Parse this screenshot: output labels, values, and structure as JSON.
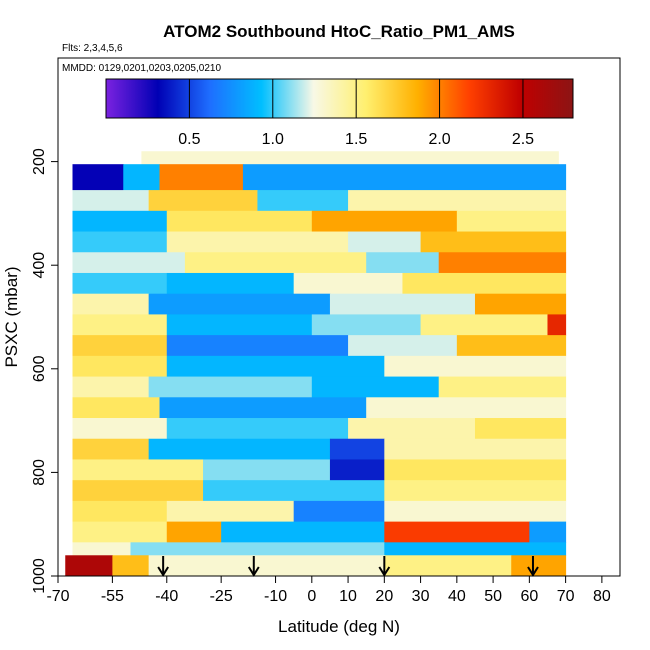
{
  "chart_data": {
    "type": "heatmap",
    "title": "ATOM2 Southbound HtoC_Ratio_PM1_AMS",
    "flights_note": "Flts: 2,3,4,5,6",
    "dates_note": "MMDD: 0129,0201,0203,0205,0210",
    "xlabel": "Latitude (deg N)",
    "ylabel": "PSXC (mbar)",
    "xlim": [
      -70,
      85
    ],
    "ylim": [
      1000,
      0
    ],
    "x_ticks": [
      -70,
      -55,
      -40,
      -25,
      -10,
      0,
      10,
      20,
      30,
      40,
      50,
      60,
      70,
      80
    ],
    "x_tick_labels": [
      "-70",
      "-55",
      "-40",
      "-25",
      "-10",
      "0",
      "10",
      "20",
      "30",
      "40",
      "50",
      "60",
      "70",
      "80"
    ],
    "y_ticks": [
      200,
      400,
      600,
      800,
      1000
    ],
    "y_tick_labels": [
      "200",
      "400",
      "600",
      "800",
      "1000"
    ],
    "colorbar": {
      "range": [
        0,
        2.8
      ],
      "ticks": [
        0.5,
        1.0,
        1.5,
        2.0,
        2.5
      ],
      "tick_labels": [
        "0.5",
        "1.0",
        "1.5",
        "2.0",
        "2.5"
      ],
      "colors": [
        "#7b22e0",
        "#0000b4",
        "#1e6eff",
        "#00bfff",
        "#f8f8e6",
        "#fff070",
        "#ffb000",
        "#ff4000",
        "#c00000",
        "#8c1414"
      ]
    },
    "date_arrow_latitudes": [
      -41,
      -16,
      20,
      61
    ],
    "layers": [
      {
        "p_top": 180,
        "p_bot": 205,
        "segments": [
          [
            -47,
            68,
            1.3
          ]
        ]
      },
      {
        "p_top": 205,
        "p_bot": 255,
        "segments": [
          [
            -66,
            -52,
            0.3
          ],
          [
            -52,
            -42,
            0.9
          ],
          [
            -42,
            -19,
            2.0
          ],
          [
            -19,
            70,
            0.8
          ]
        ]
      },
      {
        "p_top": 255,
        "p_bot": 295,
        "segments": [
          [
            -66,
            -45,
            1.2
          ],
          [
            -45,
            -15,
            1.7
          ],
          [
            -15,
            10,
            1.0
          ],
          [
            10,
            70,
            1.4
          ]
        ]
      },
      {
        "p_top": 295,
        "p_bot": 335,
        "segments": [
          [
            -66,
            -40,
            0.9
          ],
          [
            -40,
            0,
            1.6
          ],
          [
            0,
            40,
            1.9
          ],
          [
            40,
            70,
            1.5
          ]
        ]
      },
      {
        "p_top": 335,
        "p_bot": 375,
        "segments": [
          [
            -66,
            -40,
            1.0
          ],
          [
            -40,
            10,
            1.4
          ],
          [
            10,
            30,
            1.2
          ],
          [
            30,
            70,
            1.8
          ]
        ]
      },
      {
        "p_top": 375,
        "p_bot": 415,
        "segments": [
          [
            -66,
            -35,
            1.2
          ],
          [
            -35,
            15,
            1.5
          ],
          [
            15,
            35,
            1.1
          ],
          [
            35,
            70,
            2.0
          ]
        ]
      },
      {
        "p_top": 415,
        "p_bot": 455,
        "segments": [
          [
            -66,
            -40,
            1.0
          ],
          [
            -40,
            -5,
            0.9
          ],
          [
            -5,
            25,
            1.3
          ],
          [
            25,
            70,
            1.6
          ]
        ]
      },
      {
        "p_top": 455,
        "p_bot": 495,
        "segments": [
          [
            -66,
            -45,
            1.4
          ],
          [
            -45,
            5,
            0.8
          ],
          [
            5,
            45,
            1.2
          ],
          [
            45,
            70,
            1.9
          ]
        ]
      },
      {
        "p_top": 495,
        "p_bot": 535,
        "segments": [
          [
            -66,
            -40,
            1.5
          ],
          [
            -40,
            0,
            0.9
          ],
          [
            0,
            30,
            1.1
          ],
          [
            30,
            65,
            1.5
          ],
          [
            65,
            70,
            2.3
          ]
        ]
      },
      {
        "p_top": 535,
        "p_bot": 575,
        "segments": [
          [
            -66,
            -40,
            1.7
          ],
          [
            -40,
            10,
            0.7
          ],
          [
            10,
            40,
            1.2
          ],
          [
            40,
            70,
            1.8
          ]
        ]
      },
      {
        "p_top": 575,
        "p_bot": 615,
        "segments": [
          [
            -66,
            -40,
            1.6
          ],
          [
            -40,
            20,
            0.9
          ],
          [
            20,
            70,
            1.3
          ]
        ]
      },
      {
        "p_top": 615,
        "p_bot": 655,
        "segments": [
          [
            -66,
            -45,
            1.4
          ],
          [
            -45,
            0,
            1.1
          ],
          [
            0,
            35,
            0.9
          ],
          [
            35,
            70,
            1.5
          ]
        ]
      },
      {
        "p_top": 655,
        "p_bot": 695,
        "segments": [
          [
            -66,
            -42,
            1.6
          ],
          [
            -42,
            15,
            0.8
          ],
          [
            15,
            70,
            1.3
          ]
        ]
      },
      {
        "p_top": 695,
        "p_bot": 735,
        "segments": [
          [
            -66,
            -40,
            1.3
          ],
          [
            -40,
            10,
            1.0
          ],
          [
            10,
            45,
            1.4
          ],
          [
            45,
            70,
            1.6
          ]
        ]
      },
      {
        "p_top": 735,
        "p_bot": 775,
        "segments": [
          [
            -66,
            -45,
            1.7
          ],
          [
            -45,
            5,
            0.9
          ],
          [
            5,
            20,
            0.5
          ],
          [
            20,
            70,
            1.4
          ]
        ]
      },
      {
        "p_top": 775,
        "p_bot": 815,
        "segments": [
          [
            -66,
            -30,
            1.5
          ],
          [
            -30,
            5,
            1.1
          ],
          [
            5,
            20,
            0.4
          ],
          [
            20,
            70,
            1.6
          ]
        ]
      },
      {
        "p_top": 815,
        "p_bot": 855,
        "segments": [
          [
            -66,
            -30,
            1.7
          ],
          [
            -30,
            20,
            1.0
          ],
          [
            20,
            70,
            1.5
          ]
        ]
      },
      {
        "p_top": 855,
        "p_bot": 895,
        "segments": [
          [
            -66,
            -40,
            1.6
          ],
          [
            -40,
            -5,
            1.4
          ],
          [
            -5,
            20,
            0.7
          ],
          [
            20,
            70,
            1.3
          ]
        ]
      },
      {
        "p_top": 895,
        "p_bot": 935,
        "segments": [
          [
            -66,
            -40,
            1.5
          ],
          [
            -40,
            -25,
            1.9
          ],
          [
            -25,
            20,
            0.9
          ],
          [
            20,
            60,
            2.2
          ],
          [
            60,
            70,
            0.8
          ]
        ]
      },
      {
        "p_top": 935,
        "p_bot": 960,
        "segments": [
          [
            -66,
            -50,
            1.3
          ],
          [
            -50,
            20,
            1.1
          ],
          [
            20,
            70,
            0.9
          ]
        ]
      },
      {
        "p_top": 960,
        "p_bot": 1000,
        "segments": [
          [
            -68,
            -55,
            2.6
          ],
          [
            -55,
            -45,
            1.8
          ],
          [
            -45,
            20,
            1.3
          ],
          [
            20,
            55,
            1.5
          ],
          [
            55,
            70,
            1.9
          ]
        ]
      }
    ]
  }
}
